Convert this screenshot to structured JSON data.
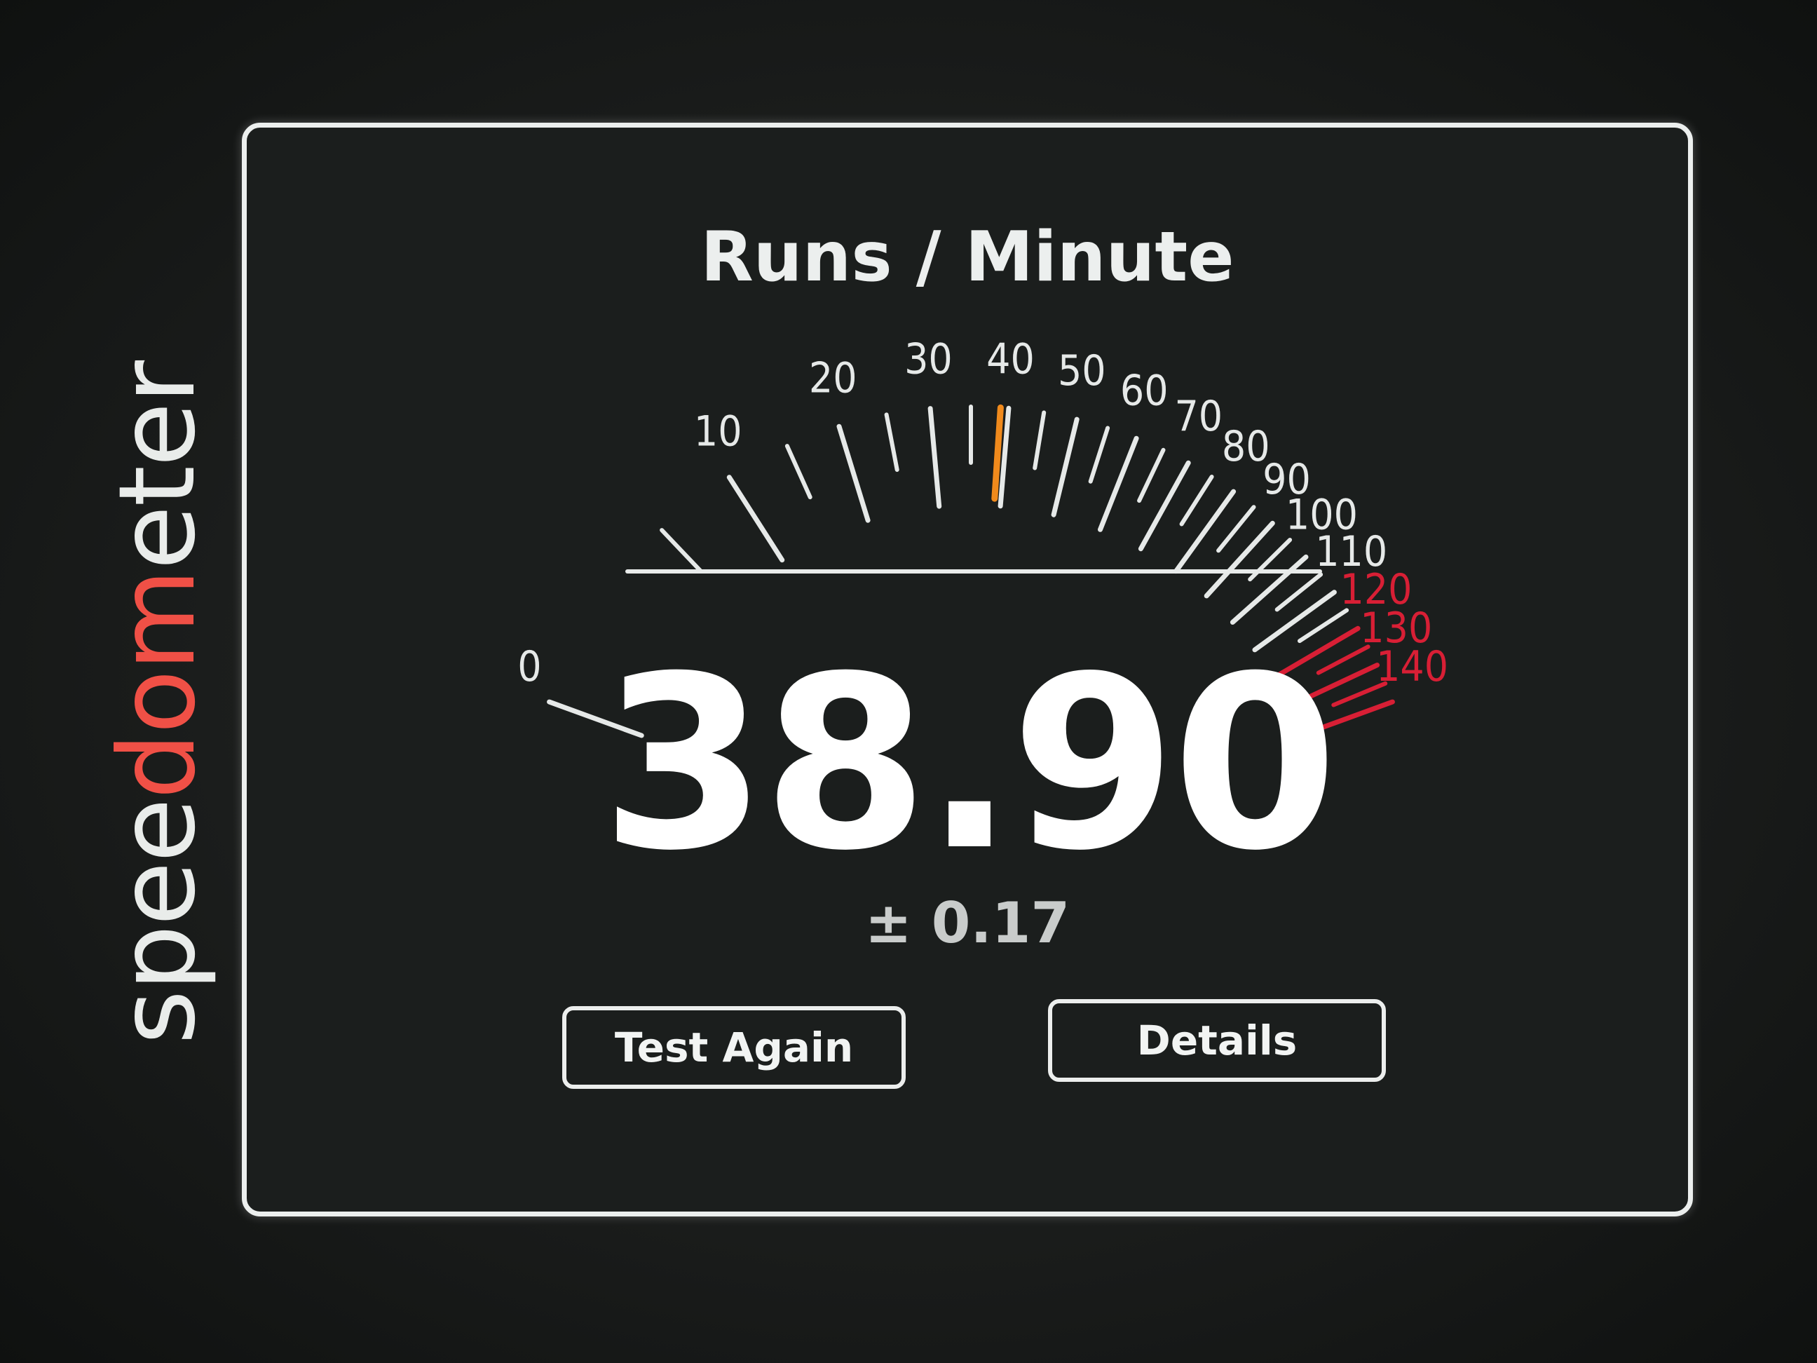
{
  "brand": {
    "prefix": "spee",
    "accent": "dom",
    "suffix": "eter",
    "accent_color": "#f05046"
  },
  "title": "Runs / Minute",
  "gauge": {
    "min": 0,
    "max": 140,
    "labels": [
      "0",
      "10",
      "20",
      "30",
      "40",
      "50",
      "60",
      "70",
      "80",
      "90",
      "100",
      "110",
      "120",
      "130",
      "140"
    ],
    "needle_value": 38.9,
    "redline_from": 120,
    "normal_color": "#e6e9e8",
    "redline_color": "#d81f35",
    "needle_color": "#f08a1c"
  },
  "result": {
    "score": "38.90",
    "error": "± 0.17"
  },
  "buttons": {
    "test_again": "Test Again",
    "details": "Details"
  }
}
